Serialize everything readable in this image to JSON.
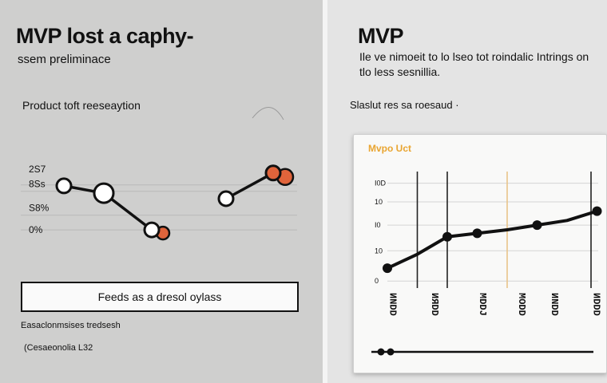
{
  "left": {
    "title": "MVP lost a caphy-",
    "subtitle": "ssem preliminace",
    "chart_title": "Product toft reeseaytion",
    "button_label": "Feeds as a dresol oylass",
    "footnote_1": "Easaclonmsises tredsesh",
    "footnote_2": "(Cesaeonolia L32"
  },
  "right": {
    "title": "MVP",
    "description": "Ile ve nimoeit to lo lseo tot roindalic Intrings on tlo less sesnillia.",
    "note": "Slaslut res sa roesaud ·",
    "card_title": "Mvpo Uct",
    "legend_marker": "marker-line"
  },
  "chart_data": [
    {
      "type": "line",
      "title": "Product toft reeseaytion",
      "y_tick_labels": [
        "2S7",
        "8Ss",
        "S8%",
        "0%"
      ],
      "series": [
        {
          "values": [
            2.7,
            2.3,
            0.3
          ]
        },
        {
          "values": [
            2.0,
            3.4
          ]
        }
      ],
      "highlight_color": "#e0643b",
      "grid": true
    },
    {
      "type": "line",
      "title": "Mvpo Uct",
      "y_tick_labels": [
        "I0D",
        "10",
        "I0",
        "10",
        "0"
      ],
      "x_tick_labels": [
        "ИNDD",
        "ИЯDD",
        "MDDJ",
        "MODD",
        "ИNDD",
        "ИDDD"
      ],
      "x": [
        1,
        2,
        3,
        4,
        5,
        6,
        7,
        8
      ],
      "series": [
        {
          "values": [
            0.85,
            1.45,
            2.2,
            2.35,
            2.5,
            2.7,
            2.9,
            3.3
          ]
        }
      ],
      "vertical_markers": [
        2,
        3,
        5,
        7.8
      ],
      "vertical_marker_colors": [
        "#222222",
        "#222222",
        "#e8c48a",
        "#222222"
      ],
      "ylim": [
        0,
        5
      ],
      "grid": true
    }
  ]
}
